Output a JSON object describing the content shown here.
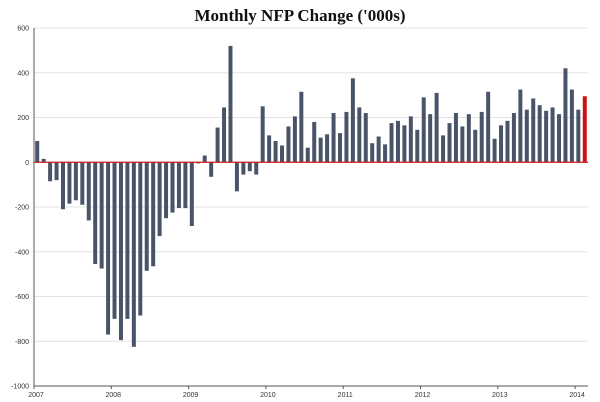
{
  "chart_data": {
    "type": "bar",
    "title": "Monthly NFP Change ('000s)",
    "xlabel": "",
    "ylabel": "",
    "ylim": [
      -1000,
      600
    ],
    "yticks": [
      600,
      400,
      200,
      0,
      -200,
      -400,
      -600,
      -800,
      -1000
    ],
    "xtick_labels": [
      "2007",
      "2008",
      "2009",
      "2010",
      "2011",
      "2012",
      "2013",
      "2014"
    ],
    "grid": true,
    "legend": "none",
    "series": [
      {
        "values": [
          95,
          15,
          -85,
          -80,
          -210,
          -185,
          -170,
          -190,
          -260,
          -455,
          -475,
          -770,
          -700,
          -795,
          -700,
          -825,
          -685,
          -485,
          -465,
          -330,
          -250,
          -225,
          -205,
          -205,
          -285,
          -5,
          30,
          -65,
          155,
          245,
          520,
          -130,
          -55,
          -40,
          -55,
          250,
          120,
          95,
          75,
          160,
          205,
          315,
          65,
          180,
          110,
          125,
          220,
          130,
          225,
          375,
          245,
          220,
          85,
          115,
          80,
          175,
          185,
          165,
          205,
          145,
          290,
          215,
          310,
          120,
          175,
          220,
          160,
          215,
          145,
          225,
          315,
          105,
          165,
          185,
          220,
          325,
          235,
          285,
          255,
          230,
          245,
          215,
          420,
          325,
          235,
          295
        ]
      }
    ],
    "colors": {
      "bar": "#4a5468",
      "last_bar": "#cc1111",
      "zero_line": "#d11a1a",
      "grid": "#e3e3e3",
      "axis": "#555555"
    }
  }
}
